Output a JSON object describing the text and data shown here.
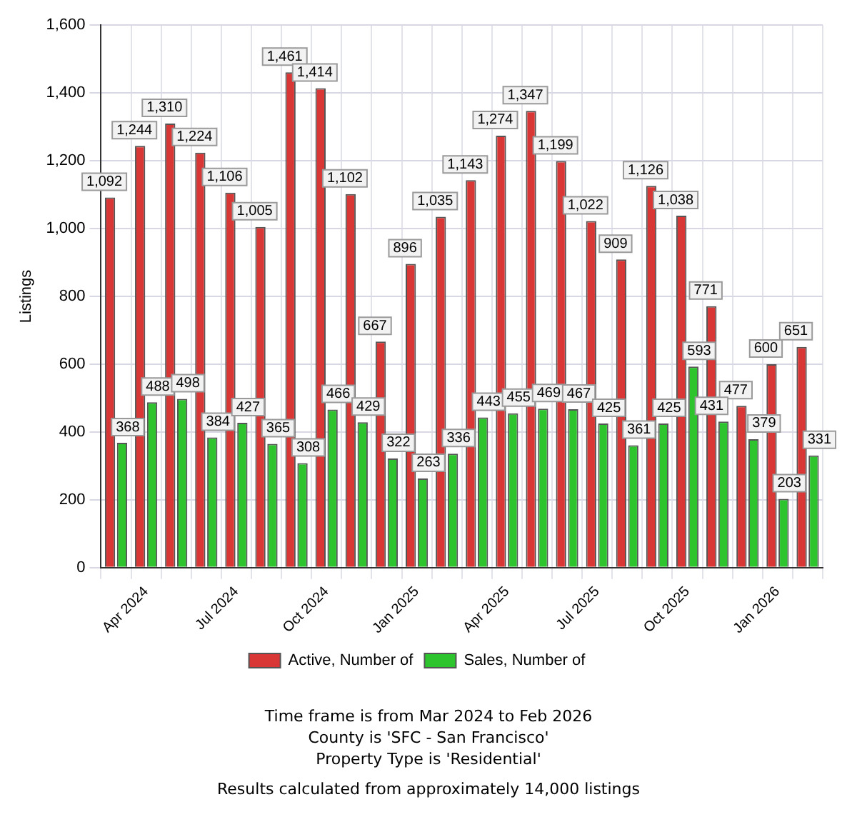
{
  "chart_data": {
    "type": "bar",
    "ylabel": "Listings",
    "categories": [
      null,
      "Apr 2024",
      null,
      null,
      "Jul 2024",
      null,
      null,
      "Oct 2024",
      null,
      null,
      "Jan 2025",
      null,
      null,
      "Apr 2025",
      null,
      null,
      "Jul 2025",
      null,
      null,
      "Oct 2025",
      null,
      null,
      "Jan 2026",
      null
    ],
    "series": [
      {
        "name": "Active, Number of",
        "color": "#d93636",
        "values": [
          1092,
          1244,
          1310,
          1224,
          1106,
          1005,
          1461,
          1414,
          1102,
          667,
          896,
          1035,
          1143,
          1274,
          1347,
          1199,
          1022,
          909,
          1126,
          1038,
          771,
          477,
          600,
          651
        ],
        "value_labels": [
          "1,092",
          "1,244",
          "1,310",
          "1,224",
          "1,106",
          "1,005",
          "1,461",
          "1,414",
          "1,102",
          "667",
          "896",
          "1,035",
          "1,143",
          "1,274",
          "1,347",
          "1,199",
          "1,022",
          "909",
          "1,126",
          "1,038",
          "771",
          "477",
          "600",
          "651"
        ]
      },
      {
        "name": "Sales, Number of",
        "color": "#2ec42e",
        "values": [
          368,
          488,
          498,
          384,
          427,
          365,
          308,
          466,
          429,
          322,
          263,
          336,
          443,
          455,
          469,
          467,
          425,
          361,
          425,
          593,
          431,
          379,
          203,
          331
        ],
        "value_labels": [
          "368",
          "488",
          "498",
          "384",
          "427",
          "365",
          "308",
          "466",
          "429",
          "322",
          "263",
          "336",
          "443",
          "455",
          "469",
          "467",
          "425",
          "361",
          "425",
          "593",
          "431",
          "379",
          "203",
          "331"
        ]
      }
    ],
    "ylim": [
      0,
      1600
    ],
    "yticks": [
      0,
      200,
      400,
      600,
      800,
      {
        "value": 1000,
        "label": "1,000"
      },
      {
        "value": 1200,
        "label": "1,200"
      },
      {
        "value": 1400,
        "label": "1,400"
      },
      {
        "value": 1600,
        "label": "1,600"
      }
    ],
    "grid": true,
    "legend": "bottom",
    "annotations": [
      "Time frame is from Mar 2024 to Feb 2026",
      "County is 'SFC - San Francisco'",
      "Property Type is 'Residential'",
      "Results calculated from approximately 14,000 listings"
    ]
  }
}
